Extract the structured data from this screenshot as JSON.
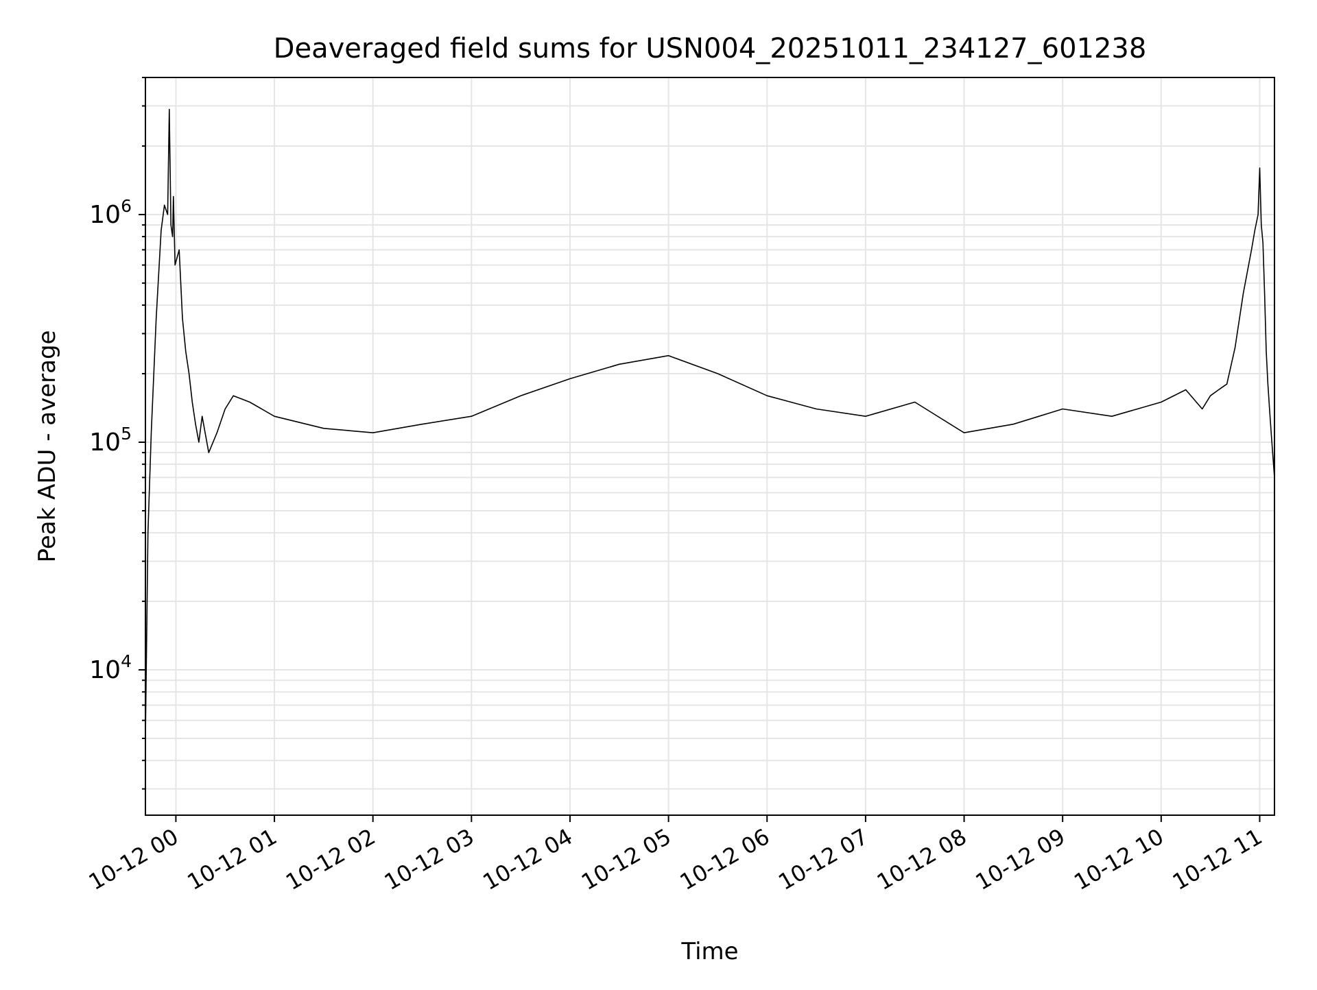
{
  "chart_data": {
    "type": "line",
    "title": "Deaveraged field sums for USN004_20251011_234127_601238",
    "xlabel": "Time",
    "ylabel": "Peak ADU - average",
    "yscale": "log",
    "ylim": [
      2300,
      4000000
    ],
    "xlim": [
      "2025-10-11 23:41:27",
      "2025-10-12 11:09:00"
    ],
    "grid": true,
    "legend": "none",
    "line_color": "#000000",
    "grid_color": "#e5e5e5",
    "x_ticks": [
      {
        "value": "2025-10-12 00:00",
        "label": "10-12 00"
      },
      {
        "value": "2025-10-12 01:00",
        "label": "10-12 01"
      },
      {
        "value": "2025-10-12 02:00",
        "label": "10-12 02"
      },
      {
        "value": "2025-10-12 03:00",
        "label": "10-12 03"
      },
      {
        "value": "2025-10-12 04:00",
        "label": "10-12 04"
      },
      {
        "value": "2025-10-12 05:00",
        "label": "10-12 05"
      },
      {
        "value": "2025-10-12 06:00",
        "label": "10-12 06"
      },
      {
        "value": "2025-10-12 07:00",
        "label": "10-12 07"
      },
      {
        "value": "2025-10-12 08:00",
        "label": "10-12 08"
      },
      {
        "value": "2025-10-12 09:00",
        "label": "10-12 09"
      },
      {
        "value": "2025-10-12 10:00",
        "label": "10-12 10"
      },
      {
        "value": "2025-10-12 11:00",
        "label": "10-12 11"
      }
    ],
    "y_ticks": [
      {
        "value": 10000,
        "base": "10",
        "exp": "4"
      },
      {
        "value": 100000,
        "base": "10",
        "exp": "5"
      },
      {
        "value": 1000000,
        "base": "10",
        "exp": "6"
      }
    ],
    "series": [
      {
        "x": [
          "2025-10-11 23:41:27",
          "2025-10-11 23:43:00",
          "2025-10-11 23:45:00",
          "2025-10-11 23:48:00",
          "2025-10-11 23:51:00",
          "2025-10-11 23:53:00",
          "2025-10-11 23:55:00",
          "2025-10-11 23:56:00",
          "2025-10-11 23:57:00",
          "2025-10-11 23:58:00",
          "2025-10-11 23:58:30",
          "2025-10-11 23:59:30",
          "2025-10-12 00:02:00",
          "2025-10-12 00:04:00",
          "2025-10-12 00:06:00",
          "2025-10-12 00:08:00",
          "2025-10-12 00:10:00",
          "2025-10-12 00:12:00",
          "2025-10-12 00:14:00",
          "2025-10-12 00:16:00",
          "2025-10-12 00:20:00",
          "2025-10-12 00:25:00",
          "2025-10-12 00:30:00",
          "2025-10-12 00:35:00",
          "2025-10-12 00:45:00",
          "2025-10-12 01:00:00",
          "2025-10-12 01:30:00",
          "2025-10-12 02:00:00",
          "2025-10-12 02:30:00",
          "2025-10-12 03:00:00",
          "2025-10-12 03:30:00",
          "2025-10-12 04:00:00",
          "2025-10-12 04:30:00",
          "2025-10-12 05:00:00",
          "2025-10-12 05:30:00",
          "2025-10-12 06:00:00",
          "2025-10-12 06:30:00",
          "2025-10-12 07:00:00",
          "2025-10-12 07:30:00",
          "2025-10-12 08:00:00",
          "2025-10-12 08:30:00",
          "2025-10-12 09:00:00",
          "2025-10-12 09:30:00",
          "2025-10-12 10:00:00",
          "2025-10-12 10:15:00",
          "2025-10-12 10:25:00",
          "2025-10-12 10:30:00",
          "2025-10-12 10:35:00",
          "2025-10-12 10:40:00",
          "2025-10-12 10:45:00",
          "2025-10-12 10:50:00",
          "2025-10-12 10:55:00",
          "2025-10-12 10:57:00",
          "2025-10-12 10:59:00",
          "2025-10-12 11:00:00",
          "2025-10-12 11:01:00",
          "2025-10-12 11:02:00",
          "2025-10-12 11:03:00",
          "2025-10-12 11:04:00",
          "2025-10-12 11:05:00",
          "2025-10-12 11:06:00",
          "2025-10-12 11:07:00",
          "2025-10-12 11:09:00"
        ],
        "y": [
          5000,
          40000,
          110000,
          350000,
          850000,
          1100000,
          1000000,
          2900000,
          900000,
          800000,
          1200000,
          600000,
          700000,
          350000,
          250000,
          200000,
          150000,
          120000,
          100000,
          130000,
          90000,
          110000,
          140000,
          160000,
          150000,
          130000,
          115000,
          110000,
          120000,
          130000,
          160000,
          190000,
          220000,
          240000,
          200000,
          160000,
          140000,
          130000,
          150000,
          110000,
          120000,
          140000,
          130000,
          150000,
          170000,
          140000,
          160000,
          170000,
          180000,
          260000,
          450000,
          700000,
          850000,
          1000000,
          1600000,
          900000,
          750000,
          450000,
          250000,
          180000,
          140000,
          110000,
          70000
        ]
      }
    ]
  }
}
